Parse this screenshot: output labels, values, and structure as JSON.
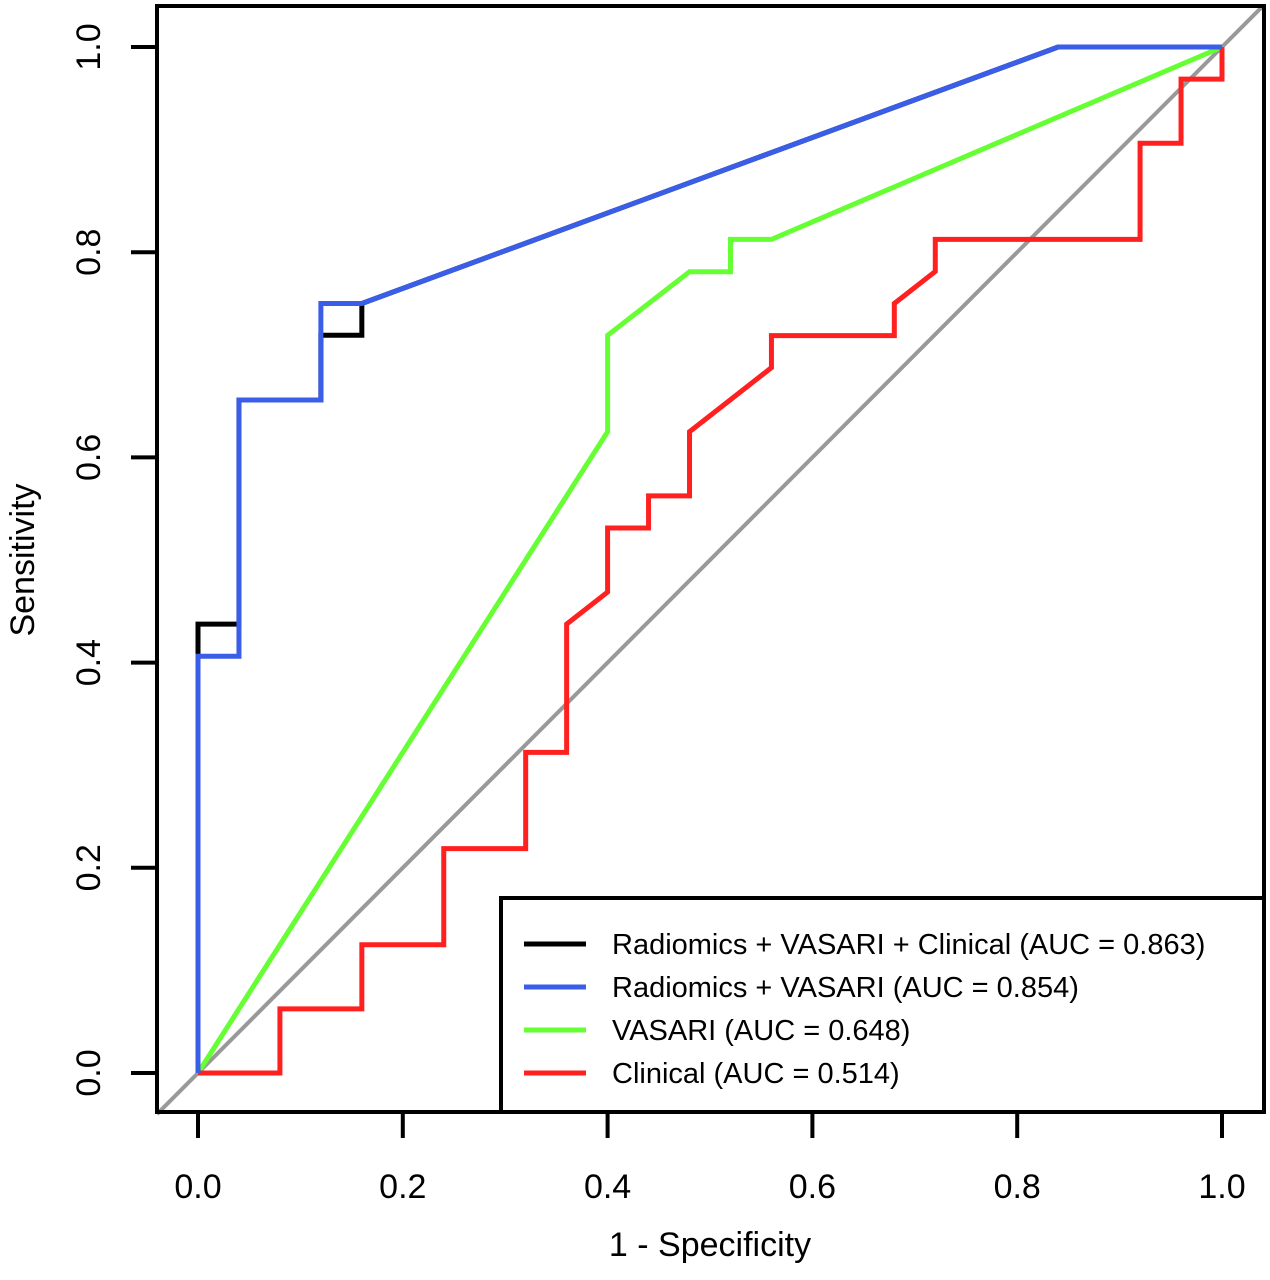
{
  "chart_data": {
    "type": "line",
    "xlabel": "1 - Specificity",
    "ylabel": "Sensitivity",
    "xlim": [
      -0.04,
      1.04
    ],
    "ylim": [
      -0.04,
      1.04
    ],
    "x_ticks": [
      "0.0",
      "0.2",
      "0.4",
      "0.6",
      "0.8",
      "1.0"
    ],
    "y_ticks": [
      "0.0",
      "0.2",
      "0.4",
      "0.6",
      "0.8",
      "1.0"
    ],
    "grid": false,
    "legend_position": "bottom-right",
    "reference_line": {
      "from": [
        0,
        0
      ],
      "to": [
        1,
        1
      ],
      "color": "#999999"
    },
    "series": [
      {
        "name": "Radiomics + VASARI + Clinical (AUC = 0.863)",
        "color": "#000000",
        "x": [
          0,
          0,
          0.04,
          0.04,
          0.12,
          0.12,
          0.16,
          0.16,
          0.84,
          1.0
        ],
        "y": [
          0,
          0.4375,
          0.4375,
          0.656,
          0.656,
          0.719,
          0.719,
          0.75,
          1.0,
          1.0
        ]
      },
      {
        "name": "VASARI (AUC = 0.648)",
        "color": "#66ff33",
        "x": [
          0,
          0.4,
          0.4,
          0.48,
          0.52,
          0.52,
          0.56,
          1.0
        ],
        "y": [
          0,
          0.625,
          0.719,
          0.781,
          0.781,
          0.8125,
          0.8125,
          1.0
        ]
      },
      {
        "name": "Clinical (AUC = 0.514)",
        "color": "#ff2020",
        "x": [
          0,
          0.08,
          0.08,
          0.16,
          0.16,
          0.24,
          0.24,
          0.32,
          0.32,
          0.36,
          0.36,
          0.4,
          0.4,
          0.44,
          0.44,
          0.48,
          0.48,
          0.56,
          0.56,
          0.68,
          0.68,
          0.72,
          0.72,
          0.92,
          0.92,
          0.96,
          0.96,
          1.0,
          1.0
        ],
        "y": [
          0,
          0,
          0.0625,
          0.0625,
          0.125,
          0.125,
          0.21875,
          0.21875,
          0.3125,
          0.3125,
          0.4375,
          0.46875,
          0.53125,
          0.53125,
          0.5625,
          0.5625,
          0.625,
          0.6875,
          0.71875,
          0.71875,
          0.75,
          0.78125,
          0.8125,
          0.8125,
          0.90625,
          0.90625,
          0.96875,
          0.96875,
          1.0
        ]
      },
      {
        "name": "Radiomics + VASARI (AUC = 0.854)",
        "color": "#3a5ee8",
        "x": [
          0,
          0,
          0.04,
          0.04,
          0.12,
          0.12,
          0.16,
          0.84,
          1.0
        ],
        "y": [
          0,
          0.40625,
          0.40625,
          0.656,
          0.656,
          0.75,
          0.75,
          1.0,
          1.0
        ]
      }
    ],
    "legend_order": [
      0,
      3,
      1,
      2
    ]
  }
}
